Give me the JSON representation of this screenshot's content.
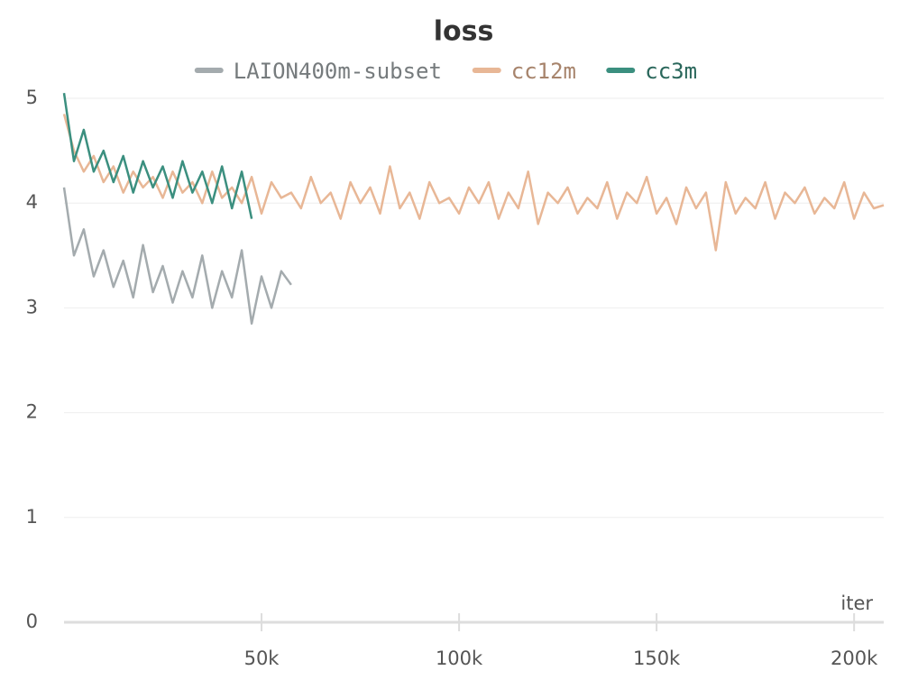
{
  "chart_data": {
    "type": "line",
    "title": "loss",
    "x_label": "iter",
    "xlim": [
      0,
      207500
    ],
    "ylim": [
      0,
      5
    ],
    "xticks": [
      {
        "value": 50000,
        "label": "50k"
      },
      {
        "value": 100000,
        "label": "100k"
      },
      {
        "value": 150000,
        "label": "150k"
      },
      {
        "value": 200000,
        "label": "200k"
      }
    ],
    "yticks": [
      0,
      1,
      2,
      3,
      4,
      5
    ],
    "grid": true,
    "legend": "top",
    "series": [
      {
        "name": "LAION400m-subset",
        "color": "#a4abae",
        "x": [
          0,
          2500,
          5000,
          7500,
          10000,
          12500,
          15000,
          17500,
          20000,
          22500,
          25000,
          27500,
          30000,
          32500,
          35000,
          37500,
          40000,
          42500,
          45000,
          47500,
          50000,
          52500,
          55000,
          57500
        ],
        "values": [
          4.15,
          3.5,
          3.75,
          3.3,
          3.55,
          3.2,
          3.45,
          3.1,
          3.6,
          3.15,
          3.4,
          3.05,
          3.35,
          3.1,
          3.5,
          3.0,
          3.35,
          3.1,
          3.55,
          2.85,
          3.3,
          3.0,
          3.35,
          3.22
        ]
      },
      {
        "name": "cc12m",
        "color": "#e8b796",
        "x": [
          0,
          2500,
          5000,
          7500,
          10000,
          12500,
          15000,
          17500,
          20000,
          22500,
          25000,
          27500,
          30000,
          32500,
          35000,
          37500,
          40000,
          42500,
          45000,
          47500,
          50000,
          52500,
          55000,
          57500,
          60000,
          62500,
          65000,
          67500,
          70000,
          72500,
          75000,
          77500,
          80000,
          82500,
          85000,
          87500,
          90000,
          92500,
          95000,
          97500,
          100000,
          102500,
          105000,
          107500,
          110000,
          112500,
          115000,
          117500,
          120000,
          122500,
          125000,
          127500,
          130000,
          132500,
          135000,
          137500,
          140000,
          142500,
          145000,
          147500,
          150000,
          152500,
          155000,
          157500,
          160000,
          162500,
          165000,
          167500,
          170000,
          172500,
          175000,
          177500,
          180000,
          182500,
          185000,
          187500,
          190000,
          192500,
          195000,
          197500,
          200000,
          202500,
          205000,
          207500
        ],
        "values": [
          4.85,
          4.5,
          4.3,
          4.45,
          4.2,
          4.35,
          4.1,
          4.3,
          4.15,
          4.25,
          4.05,
          4.3,
          4.1,
          4.2,
          4.0,
          4.3,
          4.05,
          4.15,
          4.0,
          4.25,
          3.9,
          4.2,
          4.05,
          4.1,
          3.95,
          4.25,
          4.0,
          4.1,
          3.85,
          4.2,
          4.0,
          4.15,
          3.9,
          4.35,
          3.95,
          4.1,
          3.85,
          4.2,
          4.0,
          4.05,
          3.9,
          4.15,
          4.0,
          4.2,
          3.85,
          4.1,
          3.95,
          4.3,
          3.8,
          4.1,
          4.0,
          4.15,
          3.9,
          4.05,
          3.95,
          4.2,
          3.85,
          4.1,
          4.0,
          4.25,
          3.9,
          4.05,
          3.8,
          4.15,
          3.95,
          4.1,
          3.55,
          4.2,
          3.9,
          4.05,
          3.95,
          4.2,
          3.85,
          4.1,
          4.0,
          4.15,
          3.9,
          4.05,
          3.95,
          4.2,
          3.85,
          4.1,
          3.95,
          3.98
        ]
      },
      {
        "name": "cc3m",
        "color": "#3b8f7f",
        "x": [
          0,
          2500,
          5000,
          7500,
          10000,
          12500,
          15000,
          17500,
          20000,
          22500,
          25000,
          27500,
          30000,
          32500,
          35000,
          37500,
          40000,
          42500,
          45000,
          47500
        ],
        "values": [
          5.05,
          4.4,
          4.7,
          4.3,
          4.5,
          4.2,
          4.45,
          4.1,
          4.4,
          4.15,
          4.35,
          4.05,
          4.4,
          4.1,
          4.3,
          4.0,
          4.35,
          3.95,
          4.3,
          3.85
        ]
      }
    ]
  }
}
